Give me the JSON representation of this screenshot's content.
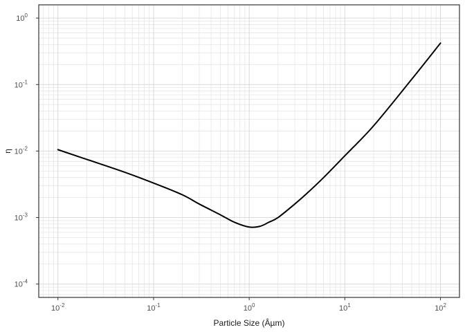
{
  "chart_data": {
    "type": "line",
    "xlabel": "Particle Size (Âµm)",
    "ylabel": "η",
    "x_scale": "log10",
    "y_scale": "log10",
    "xlim": [
      0.0063,
      158
    ],
    "ylim": [
      6.3e-05,
      1.58
    ],
    "x_ticks": [
      {
        "value": 0.01,
        "base": "10",
        "exp": "-2"
      },
      {
        "value": 0.1,
        "base": "10",
        "exp": "-1"
      },
      {
        "value": 1,
        "base": "10",
        "exp": "0"
      },
      {
        "value": 10,
        "base": "10",
        "exp": "1"
      },
      {
        "value": 100,
        "base": "10",
        "exp": "2"
      }
    ],
    "y_ticks": [
      {
        "value": 0.0001,
        "base": "10",
        "exp": "-4"
      },
      {
        "value": 0.001,
        "base": "10",
        "exp": "-3"
      },
      {
        "value": 0.01,
        "base": "10",
        "exp": "-2"
      },
      {
        "value": 0.1,
        "base": "10",
        "exp": "-1"
      },
      {
        "value": 1,
        "base": "10",
        "exp": "0"
      }
    ],
    "grid": true,
    "legend": "none",
    "line_color": "#000000",
    "series": [
      {
        "x": [
          0.01,
          0.02,
          0.05,
          0.1,
          0.2,
          0.3,
          0.5,
          0.7,
          1.0,
          1.3,
          1.6,
          2.0,
          3.0,
          4.0,
          6.0,
          10,
          20,
          50,
          100
        ],
        "y": [
          0.0105,
          0.0075,
          0.0048,
          0.0033,
          0.0022,
          0.0016,
          0.0011,
          0.00085,
          0.00072,
          0.00074,
          0.00085,
          0.001,
          0.0016,
          0.0023,
          0.004,
          0.0085,
          0.024,
          0.12,
          0.42
        ]
      }
    ]
  }
}
